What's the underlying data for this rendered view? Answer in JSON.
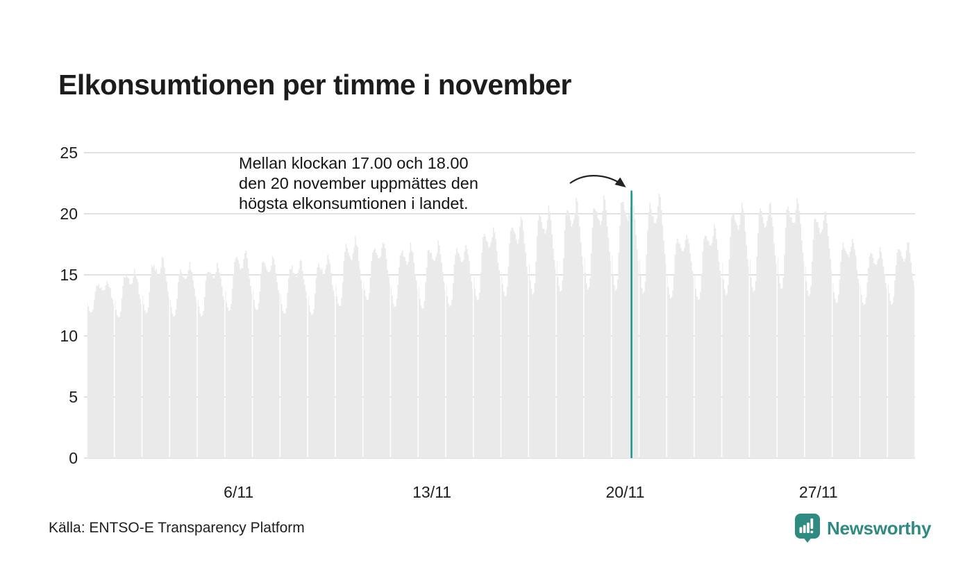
{
  "header": {
    "title": "Elkonsumtionen per timme i november"
  },
  "annotation": {
    "lines": [
      "Mellan klockan 17.00 och 18.00",
      "den 20 november uppmättes den",
      "högsta elkonsumtionen i landet."
    ]
  },
  "footer": {
    "source": "Källa: ENTSO-E Transparency Platform",
    "brand": "Newsworthy"
  },
  "colors": {
    "bar": "#eaeaea",
    "gridline": "#d7d7d7",
    "accent": "#17978a",
    "logo_teal": "#2f8a82",
    "text": "#1c1c1c"
  },
  "chart_data": {
    "type": "bar",
    "title": "Elkonsumtionen per timme i november",
    "xlabel": "",
    "ylabel": "",
    "x_unit": "hour (720 hourly bars, 30 days of November)",
    "ylim": [
      0,
      25
    ],
    "y_ticks": [
      0,
      5,
      10,
      15,
      20,
      25
    ],
    "grid": "horizontal",
    "legend": "none",
    "x_tick_labels": [
      "6/11",
      "13/11",
      "20/11",
      "27/11"
    ],
    "x_tick_days": [
      6,
      13,
      20,
      27
    ],
    "hourly_weights": [
      0.34,
      0.17,
      0.06,
      0.0,
      0.02,
      0.12,
      0.38,
      0.66,
      0.85,
      0.9,
      0.87,
      0.82,
      0.77,
      0.73,
      0.71,
      0.76,
      0.87,
      1.0,
      0.96,
      0.85,
      0.7,
      0.54,
      0.4,
      0.3
    ],
    "texture_jitter": 0.45,
    "days": [
      {
        "day": 1,
        "night_low": 11.9,
        "evening_peak": 14.5
      },
      {
        "day": 2,
        "night_low": 11.5,
        "evening_peak": 15.4
      },
      {
        "day": 3,
        "night_low": 11.9,
        "evening_peak": 16.3
      },
      {
        "day": 4,
        "night_low": 11.6,
        "evening_peak": 15.8
      },
      {
        "day": 5,
        "night_low": 11.6,
        "evening_peak": 15.9
      },
      {
        "day": 6,
        "night_low": 12.0,
        "evening_peak": 16.9
      },
      {
        "day": 7,
        "night_low": 12.1,
        "evening_peak": 16.5
      },
      {
        "day": 8,
        "night_low": 11.8,
        "evening_peak": 16.1
      },
      {
        "day": 9,
        "night_low": 11.7,
        "evening_peak": 16.4
      },
      {
        "day": 10,
        "night_low": 12.4,
        "evening_peak": 17.9
      },
      {
        "day": 11,
        "night_low": 12.9,
        "evening_peak": 17.7
      },
      {
        "day": 12,
        "night_low": 12.4,
        "evening_peak": 17.4
      },
      {
        "day": 13,
        "night_low": 12.2,
        "evening_peak": 17.6
      },
      {
        "day": 14,
        "night_low": 12.4,
        "evening_peak": 17.5
      },
      {
        "day": 15,
        "night_low": 12.9,
        "evening_peak": 18.9
      },
      {
        "day": 16,
        "night_low": 13.2,
        "evening_peak": 19.6
      },
      {
        "day": 17,
        "night_low": 13.4,
        "evening_peak": 20.5
      },
      {
        "day": 18,
        "night_low": 13.6,
        "evening_peak": 21.2
      },
      {
        "day": 19,
        "night_low": 13.8,
        "evening_peak": 21.4
      },
      {
        "day": 20,
        "night_low": 13.7,
        "evening_peak": 21.9
      },
      {
        "day": 21,
        "night_low": 13.5,
        "evening_peak": 21.5
      },
      {
        "day": 22,
        "night_low": 13.1,
        "evening_peak": 18.4
      },
      {
        "day": 23,
        "night_low": 12.9,
        "evening_peak": 19.0
      },
      {
        "day": 24,
        "night_low": 13.3,
        "evening_peak": 20.9
      },
      {
        "day": 25,
        "night_low": 13.6,
        "evening_peak": 21.0
      },
      {
        "day": 26,
        "night_low": 13.8,
        "evening_peak": 21.3
      },
      {
        "day": 27,
        "night_low": 13.3,
        "evening_peak": 20.4
      },
      {
        "day": 28,
        "night_low": 12.7,
        "evening_peak": 18.0
      },
      {
        "day": 29,
        "night_low": 12.5,
        "evening_peak": 17.2
      },
      {
        "day": 30,
        "night_low": 12.6,
        "evening_peak": 17.7
      }
    ],
    "highlight": {
      "day": 20,
      "hour": 17,
      "value": 21.9,
      "description": "Highest hourly electricity consumption of the month, 17.00–18.00 on 20 November"
    }
  }
}
